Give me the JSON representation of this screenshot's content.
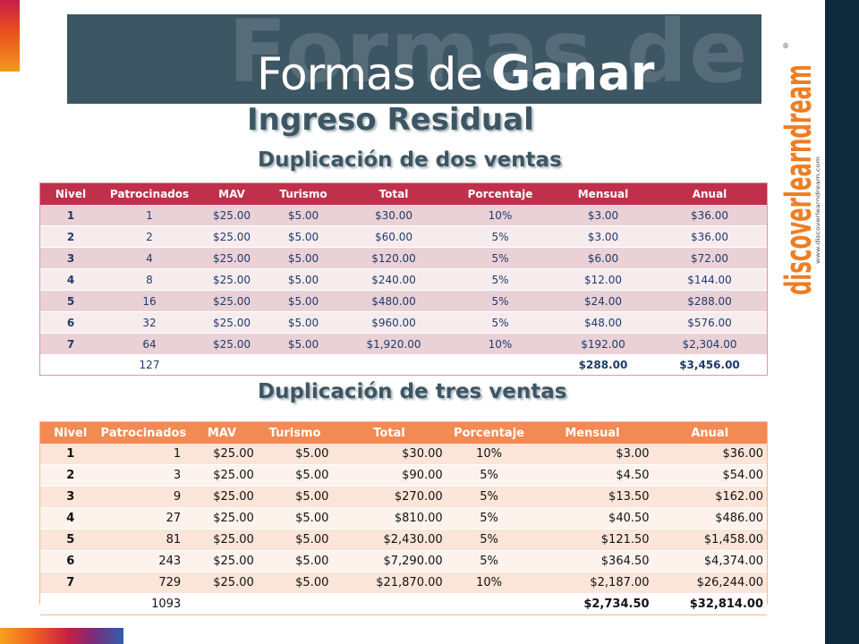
{
  "header": {
    "ghost_text": "Formas de",
    "title_part1": "Formas de",
    "title_part2": "Ganar",
    "subtitle": "Ingreso Residual"
  },
  "logo": {
    "text": "discoverlearndream",
    "url_text": "www.discoverlearndream.com",
    "registered": "®"
  },
  "colors": {
    "banner": "#3d5664",
    "table1_header": "#c0304a",
    "table2_header": "#f28a53",
    "right_bar": "#0e2b3c"
  },
  "table1": {
    "title": "Duplicación de dos ventas",
    "headers": [
      "Nivel",
      "Patrocinados",
      "MAV",
      "Turismo",
      "Total",
      "Porcentaje",
      "Mensual",
      "Anual"
    ],
    "rows": [
      [
        "1",
        "1",
        "$25.00",
        "$5.00",
        "$30.00",
        "10%",
        "$3.00",
        "$36.00"
      ],
      [
        "2",
        "2",
        "$25.00",
        "$5.00",
        "$60.00",
        "5%",
        "$3.00",
        "$36.00"
      ],
      [
        "3",
        "4",
        "$25.00",
        "$5.00",
        "$120.00",
        "5%",
        "$6.00",
        "$72.00"
      ],
      [
        "4",
        "8",
        "$25.00",
        "$5.00",
        "$240.00",
        "5%",
        "$12.00",
        "$144.00"
      ],
      [
        "5",
        "16",
        "$25.00",
        "$5.00",
        "$480.00",
        "5%",
        "$24.00",
        "$288.00"
      ],
      [
        "6",
        "32",
        "$25.00",
        "$5.00",
        "$960.00",
        "5%",
        "$48.00",
        "$576.00"
      ],
      [
        "7",
        "64",
        "$25.00",
        "$5.00",
        "$1,920.00",
        "10%",
        "$192.00",
        "$2,304.00"
      ]
    ],
    "total": {
      "patrocinados": "127",
      "mensual": "$288.00",
      "anual": "$3,456.00"
    }
  },
  "table2": {
    "title": "Duplicación de tres ventas",
    "headers": [
      "Nivel",
      "Patrocinados",
      "MAV",
      "Turismo",
      "Total",
      "Porcentaje",
      "Mensual",
      "Anual"
    ],
    "rows": [
      [
        "1",
        "1",
        "$25.00",
        "$5.00",
        "$30.00",
        "10%",
        "$3.00",
        "$36.00"
      ],
      [
        "2",
        "3",
        "$25.00",
        "$5.00",
        "$90.00",
        "5%",
        "$4.50",
        "$54.00"
      ],
      [
        "3",
        "9",
        "$25.00",
        "$5.00",
        "$270.00",
        "5%",
        "$13.50",
        "$162.00"
      ],
      [
        "4",
        "27",
        "$25.00",
        "$5.00",
        "$810.00",
        "5%",
        "$40.50",
        "$486.00"
      ],
      [
        "5",
        "81",
        "$25.00",
        "$5.00",
        "$2,430.00",
        "5%",
        "$121.50",
        "$1,458.00"
      ],
      [
        "6",
        "243",
        "$25.00",
        "$5.00",
        "$7,290.00",
        "5%",
        "$364.50",
        "$4,374.00"
      ],
      [
        "7",
        "729",
        "$25.00",
        "$5.00",
        "$21,870.00",
        "10%",
        "$2,187.00",
        "$26,244.00"
      ]
    ],
    "total": {
      "patrocinados": "1093",
      "mensual": "$2,734.50",
      "anual": "$32,814.00"
    }
  }
}
